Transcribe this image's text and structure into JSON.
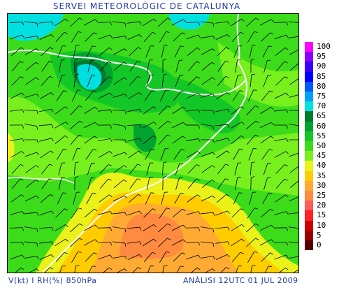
{
  "title": "SERVEI METEOROLÒGIC DE CATALUNYA",
  "footer": {
    "variables": "V(kt) I RH(%) 850hPa",
    "analysis": "ANÀLISI 12UTC 01 JUL 2009"
  },
  "legend": {
    "items": [
      {
        "label": "100",
        "color": "#ff00ff"
      },
      {
        "label": "95",
        "color": "#8a00ff"
      },
      {
        "label": "90",
        "color": "#3a00ff"
      },
      {
        "label": "85",
        "color": "#0000ff"
      },
      {
        "label": "80",
        "color": "#0058ff"
      },
      {
        "label": "75",
        "color": "#00a0ff"
      },
      {
        "label": "70",
        "color": "#00e0e0"
      },
      {
        "label": "65",
        "color": "#007a2e"
      },
      {
        "label": "60",
        "color": "#00a330"
      },
      {
        "label": "55",
        "color": "#13c826"
      },
      {
        "label": "50",
        "color": "#3cdc1a"
      },
      {
        "label": "45",
        "color": "#78f01e"
      },
      {
        "label": "40",
        "color": "#eaf21a"
      },
      {
        "label": "35",
        "color": "#ffcc00"
      },
      {
        "label": "30",
        "color": "#ffaa33"
      },
      {
        "label": "25",
        "color": "#ff8a40"
      },
      {
        "label": "20",
        "color": "#ff5a5a"
      },
      {
        "label": "15",
        "color": "#ff2020"
      },
      {
        "label": "10",
        "color": "#cc0000"
      },
      {
        "label": "5",
        "color": "#990000"
      },
      {
        "label": "0",
        "color": "#550000"
      }
    ]
  }
}
